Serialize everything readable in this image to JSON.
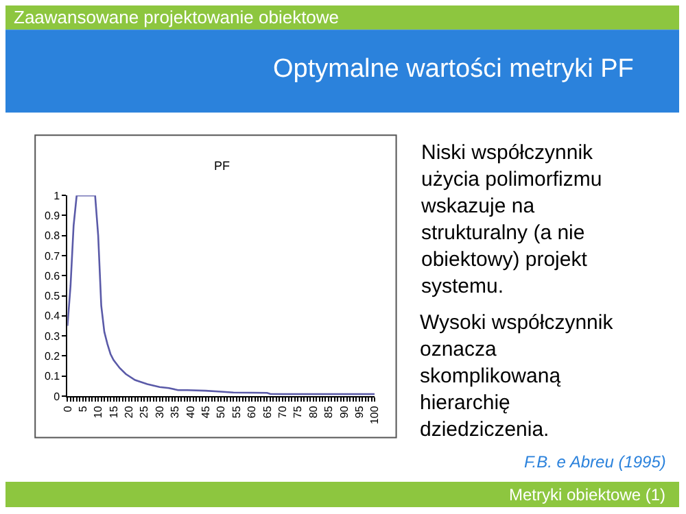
{
  "chart_data": {
    "type": "line",
    "title": "PF",
    "x": [
      0,
      1,
      2,
      3,
      4,
      5,
      6,
      7,
      8,
      9,
      10,
      11,
      12,
      13,
      14,
      15,
      17,
      19,
      22,
      26,
      30,
      33,
      36,
      39,
      45,
      50,
      54,
      60,
      65,
      66,
      70,
      80,
      90,
      100
    ],
    "series": [
      {
        "color": "#5a5aa8",
        "values": [
          0.35,
          0.55,
          0.85,
          1,
          1,
          1,
          1,
          1,
          1,
          1,
          0.8,
          0.45,
          0.32,
          0.26,
          0.21,
          0.18,
          0.14,
          0.11,
          0.08,
          0.06,
          0.045,
          0.04,
          0.03,
          0.03,
          0.027,
          0.022,
          0.018,
          0.017,
          0.016,
          0.011,
          0.01,
          0.01,
          0.01,
          0.01
        ]
      }
    ],
    "xlim": [
      0,
      100
    ],
    "xticks": [
      0,
      5,
      10,
      15,
      20,
      25,
      30,
      35,
      40,
      45,
      50,
      55,
      60,
      65,
      70,
      75,
      80,
      85,
      90,
      95,
      100
    ],
    "ylim": [
      0,
      1
    ],
    "yticks": [
      0,
      0.1,
      0.2,
      0.3,
      0.4,
      0.5,
      0.6,
      0.7,
      0.8,
      0.9,
      1
    ],
    "marker": "none",
    "line_style": "solid",
    "annotations": [
      "Zaawansowane projektowanie obiektowe",
      "Optymalne wartości metryki PF",
      "Niski współczynnik użycia polimorfizmu wskazuje na strukturalny (a nie obiektowy) projekt systemu.",
      "Wysoki współczynnik oznacza skomplikowaną hierarchię dziedziczenia.",
      "F.B. e Abreu (1995)",
      "Metryki obiektowe (1)"
    ]
  }
}
